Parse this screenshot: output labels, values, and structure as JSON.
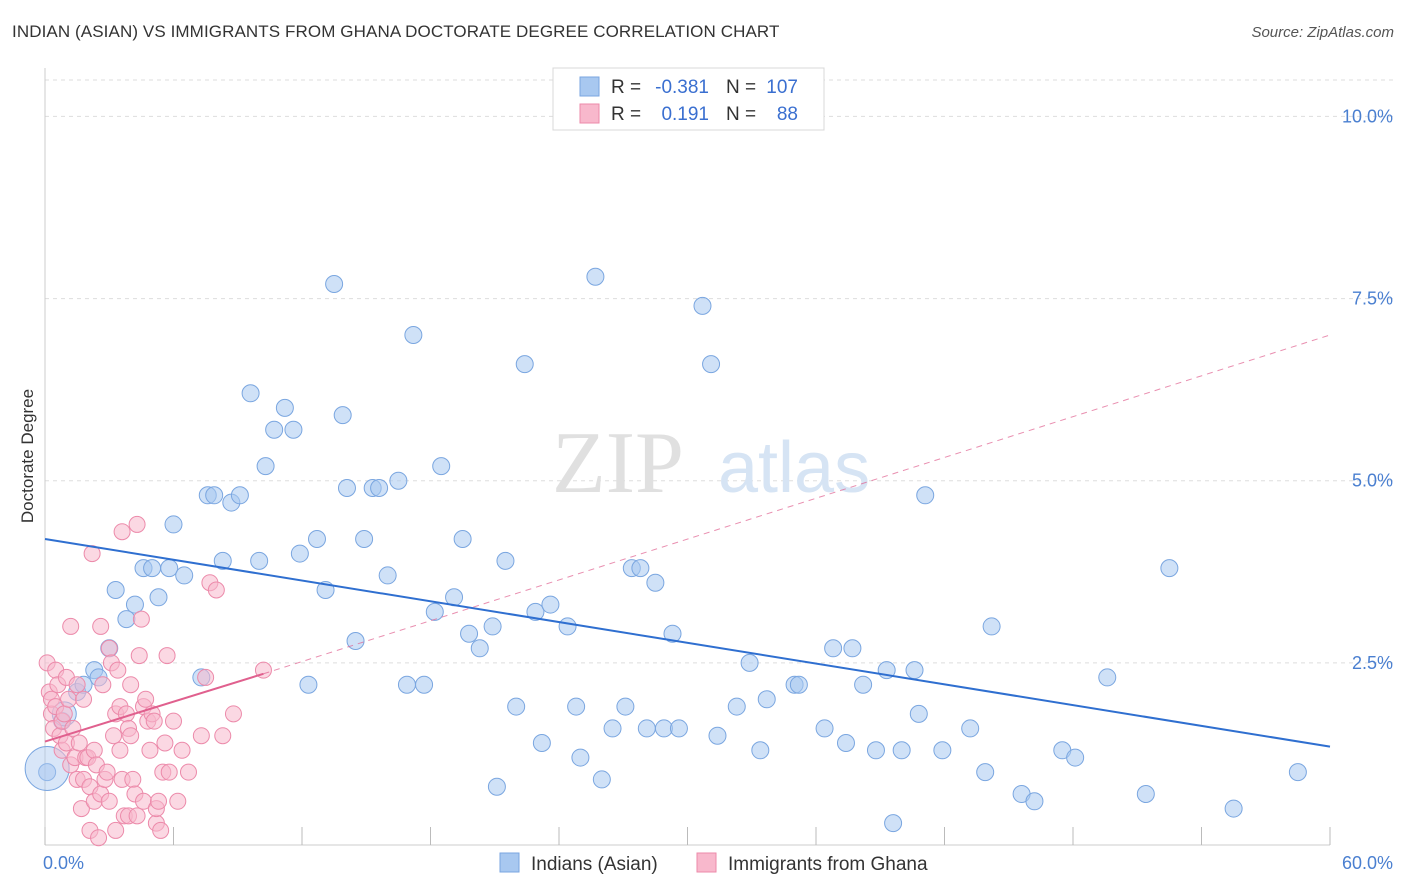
{
  "title": "INDIAN (ASIAN) VS IMMIGRANTS FROM GHANA DOCTORATE DEGREE CORRELATION CHART",
  "source": "Source: ZipAtlas.com",
  "watermark": {
    "zip": "ZIP",
    "atlas": "atlas"
  },
  "colors": {
    "blue_fill": "#a8c8f0",
    "blue_stroke": "#7aa6e0",
    "blue_line": "#2f6fd0",
    "pink_fill": "#f8b8cc",
    "pink_stroke": "#ec8aaa",
    "pink_line": "#e0608e",
    "grid": "#dddddd",
    "axis_label": "#4a7fd0"
  },
  "legend": {
    "rows": [
      {
        "r_label": "R =",
        "r_value": "-0.381",
        "n_label": "N =",
        "n_value": "107",
        "series": "blue"
      },
      {
        "r_label": "R =",
        "r_value": "0.191",
        "n_label": "N =",
        "n_value": "88",
        "series": "pink"
      }
    ]
  },
  "bottom_legend": [
    {
      "label": "Indians (Asian)",
      "series": "blue"
    },
    {
      "label": "Immigrants from Ghana",
      "series": "pink"
    }
  ],
  "chart_data": {
    "type": "scatter",
    "title": "INDIAN (ASIAN) VS IMMIGRANTS FROM GHANA DOCTORATE DEGREE CORRELATION CHART",
    "xlabel": "",
    "ylabel": "Doctorate Degree",
    "xlim": [
      0,
      60
    ],
    "ylim": [
      0,
      10.5
    ],
    "x_tick_labels": [
      {
        "value": 0,
        "label": "0.0%"
      },
      {
        "value": 60,
        "label": "60.0%"
      }
    ],
    "y_tick_labels": [
      {
        "value": 2.5,
        "label": "2.5%"
      },
      {
        "value": 5.0,
        "label": "5.0%"
      },
      {
        "value": 7.5,
        "label": "7.5%"
      },
      {
        "value": 10.0,
        "label": "10.0%"
      }
    ],
    "x_minor_ticks": [
      0,
      6,
      12,
      18,
      24,
      30,
      36,
      42,
      48,
      54,
      60
    ],
    "series": [
      {
        "name": "Indians (Asian)",
        "color": "blue",
        "r": -0.381,
        "n": 107,
        "trend": {
          "x0": 0,
          "y0": 4.2,
          "x1": 60,
          "y1": 1.35
        },
        "points": [
          [
            0.1,
            1.0
          ],
          [
            0.8,
            1.7
          ],
          [
            1.5,
            2.1
          ],
          [
            1.8,
            2.2
          ],
          [
            2.3,
            2.4
          ],
          [
            2.5,
            2.3
          ],
          [
            3.0,
            2.7
          ],
          [
            3.3,
            3.5
          ],
          [
            3.8,
            3.1
          ],
          [
            4.2,
            3.3
          ],
          [
            4.6,
            3.8
          ],
          [
            5.0,
            3.8
          ],
          [
            5.3,
            3.4
          ],
          [
            5.8,
            3.8
          ],
          [
            6.0,
            4.4
          ],
          [
            6.5,
            3.7
          ],
          [
            7.3,
            2.3
          ],
          [
            7.6,
            4.8
          ],
          [
            7.9,
            4.8
          ],
          [
            8.3,
            3.9
          ],
          [
            8.7,
            4.7
          ],
          [
            9.1,
            4.8
          ],
          [
            9.6,
            6.2
          ],
          [
            10.0,
            3.9
          ],
          [
            10.3,
            5.2
          ],
          [
            10.7,
            5.7
          ],
          [
            11.2,
            6.0
          ],
          [
            11.6,
            5.7
          ],
          [
            11.9,
            4.0
          ],
          [
            12.3,
            2.2
          ],
          [
            12.7,
            4.2
          ],
          [
            13.1,
            3.5
          ],
          [
            13.5,
            7.7
          ],
          [
            13.9,
            5.9
          ],
          [
            14.1,
            4.9
          ],
          [
            14.5,
            2.8
          ],
          [
            14.9,
            4.2
          ],
          [
            15.3,
            4.9
          ],
          [
            15.6,
            4.9
          ],
          [
            16.0,
            3.7
          ],
          [
            16.5,
            5.0
          ],
          [
            16.9,
            2.2
          ],
          [
            17.2,
            7.0
          ],
          [
            17.7,
            2.2
          ],
          [
            18.2,
            3.2
          ],
          [
            18.5,
            5.2
          ],
          [
            19.1,
            3.4
          ],
          [
            19.5,
            4.2
          ],
          [
            19.8,
            2.9
          ],
          [
            20.3,
            2.7
          ],
          [
            20.9,
            3.0
          ],
          [
            21.1,
            0.8
          ],
          [
            21.5,
            3.9
          ],
          [
            22.0,
            1.9
          ],
          [
            22.4,
            6.6
          ],
          [
            22.9,
            3.2
          ],
          [
            23.2,
            1.4
          ],
          [
            23.6,
            3.3
          ],
          [
            24.4,
            3.0
          ],
          [
            24.8,
            1.9
          ],
          [
            25.0,
            1.2
          ],
          [
            25.7,
            7.8
          ],
          [
            26.0,
            0.9
          ],
          [
            26.5,
            1.6
          ],
          [
            27.1,
            1.9
          ],
          [
            27.4,
            3.8
          ],
          [
            27.8,
            3.8
          ],
          [
            28.1,
            1.6
          ],
          [
            28.5,
            3.6
          ],
          [
            28.9,
            1.6
          ],
          [
            29.3,
            2.9
          ],
          [
            29.6,
            1.6
          ],
          [
            30.7,
            7.4
          ],
          [
            31.1,
            6.6
          ],
          [
            31.4,
            1.5
          ],
          [
            32.3,
            1.9
          ],
          [
            32.9,
            2.5
          ],
          [
            33.4,
            1.3
          ],
          [
            33.7,
            2.0
          ],
          [
            35.0,
            2.2
          ],
          [
            35.2,
            2.2
          ],
          [
            36.4,
            1.6
          ],
          [
            36.8,
            2.7
          ],
          [
            37.4,
            1.4
          ],
          [
            37.7,
            2.7
          ],
          [
            38.2,
            2.2
          ],
          [
            38.8,
            1.3
          ],
          [
            39.3,
            2.4
          ],
          [
            39.6,
            0.3
          ],
          [
            40.0,
            1.3
          ],
          [
            40.6,
            2.4
          ],
          [
            40.8,
            1.8
          ],
          [
            41.1,
            4.8
          ],
          [
            41.9,
            1.3
          ],
          [
            43.2,
            1.6
          ],
          [
            43.9,
            1.0
          ],
          [
            44.2,
            3.0
          ],
          [
            45.6,
            0.7
          ],
          [
            46.2,
            0.6
          ],
          [
            47.5,
            1.3
          ],
          [
            48.1,
            1.2
          ],
          [
            49.6,
            2.3
          ],
          [
            51.4,
            0.7
          ],
          [
            52.5,
            3.8
          ],
          [
            55.5,
            0.5
          ],
          [
            58.5,
            1.0
          ]
        ]
      },
      {
        "name": "Immigrants from Ghana",
        "color": "pink",
        "r": 0.191,
        "n": 88,
        "trend": {
          "x0": 0,
          "y0": 1.42,
          "x1": 10.2,
          "y1": 2.35
        },
        "trend_extension": {
          "x0": 10.2,
          "y0": 2.35,
          "x1": 60,
          "y1": 7.0
        },
        "points": [
          [
            0.1,
            2.5
          ],
          [
            0.2,
            2.1
          ],
          [
            0.3,
            1.8
          ],
          [
            0.3,
            2.0
          ],
          [
            0.4,
            1.6
          ],
          [
            0.5,
            2.4
          ],
          [
            0.5,
            1.9
          ],
          [
            0.6,
            2.2
          ],
          [
            0.7,
            1.5
          ],
          [
            0.8,
            1.3
          ],
          [
            0.8,
            1.7
          ],
          [
            0.9,
            1.8
          ],
          [
            1.0,
            2.3
          ],
          [
            1.0,
            1.4
          ],
          [
            1.1,
            2.0
          ],
          [
            1.2,
            3.0
          ],
          [
            1.2,
            1.1
          ],
          [
            1.3,
            1.6
          ],
          [
            1.4,
            1.2
          ],
          [
            1.5,
            2.2
          ],
          [
            1.5,
            0.9
          ],
          [
            1.6,
            1.4
          ],
          [
            1.7,
            0.5
          ],
          [
            1.8,
            0.9
          ],
          [
            1.8,
            2.0
          ],
          [
            1.9,
            1.2
          ],
          [
            2.0,
            1.2
          ],
          [
            2.1,
            0.8
          ],
          [
            2.1,
            0.2
          ],
          [
            2.2,
            4.0
          ],
          [
            2.3,
            1.3
          ],
          [
            2.3,
            0.6
          ],
          [
            2.4,
            1.1
          ],
          [
            2.5,
            0.1
          ],
          [
            2.6,
            0.7
          ],
          [
            2.6,
            3.0
          ],
          [
            2.7,
            2.2
          ],
          [
            2.8,
            0.9
          ],
          [
            2.9,
            1.0
          ],
          [
            3.0,
            0.6
          ],
          [
            3.0,
            2.7
          ],
          [
            3.1,
            2.5
          ],
          [
            3.2,
            1.5
          ],
          [
            3.3,
            1.8
          ],
          [
            3.3,
            0.2
          ],
          [
            3.4,
            2.4
          ],
          [
            3.5,
            1.3
          ],
          [
            3.5,
            1.9
          ],
          [
            3.6,
            4.3
          ],
          [
            3.6,
            0.9
          ],
          [
            3.7,
            0.4
          ],
          [
            3.8,
            1.8
          ],
          [
            3.9,
            0.4
          ],
          [
            3.9,
            1.6
          ],
          [
            4.0,
            1.5
          ],
          [
            4.0,
            2.2
          ],
          [
            4.1,
            0.9
          ],
          [
            4.2,
            0.7
          ],
          [
            4.3,
            4.4
          ],
          [
            4.3,
            0.4
          ],
          [
            4.4,
            2.6
          ],
          [
            4.5,
            3.1
          ],
          [
            4.6,
            1.9
          ],
          [
            4.6,
            0.6
          ],
          [
            4.7,
            2.0
          ],
          [
            4.8,
            1.7
          ],
          [
            4.9,
            1.3
          ],
          [
            5.0,
            1.8
          ],
          [
            5.1,
            1.7
          ],
          [
            5.2,
            0.3
          ],
          [
            5.2,
            0.5
          ],
          [
            5.3,
            0.6
          ],
          [
            5.4,
            0.2
          ],
          [
            5.5,
            1.0
          ],
          [
            5.6,
            1.4
          ],
          [
            5.7,
            2.6
          ],
          [
            5.8,
            1.0
          ],
          [
            6.0,
            1.7
          ],
          [
            6.2,
            0.6
          ],
          [
            6.4,
            1.3
          ],
          [
            6.7,
            1.0
          ],
          [
            7.3,
            1.5
          ],
          [
            7.5,
            2.3
          ],
          [
            7.7,
            3.6
          ],
          [
            8.0,
            3.5
          ],
          [
            8.3,
            1.5
          ],
          [
            8.8,
            1.8
          ],
          [
            10.2,
            2.4
          ]
        ]
      }
    ]
  }
}
